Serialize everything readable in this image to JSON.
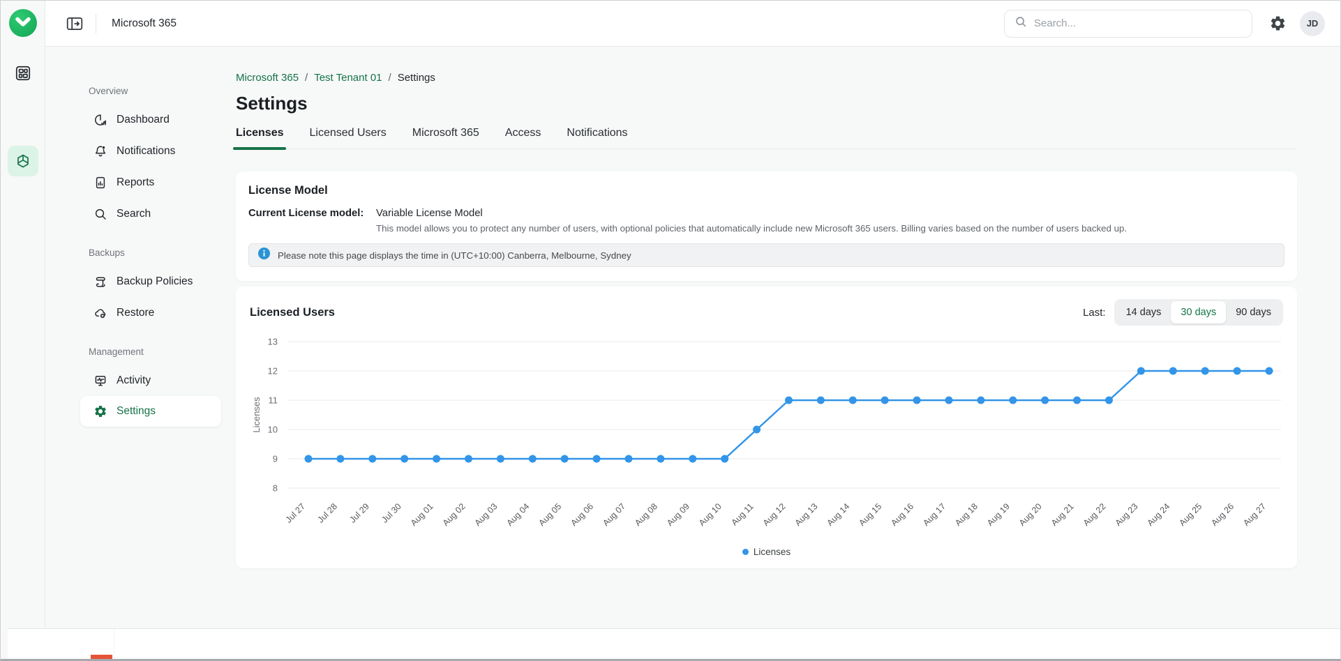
{
  "colors": {
    "brand_green": "#157347",
    "accent_blue": "#3295e8",
    "rail_active_bg": "#dcf3e7",
    "info_blue": "#2a93d5",
    "page_bg": "#f7f8f8"
  },
  "topbar": {
    "app_title": "Microsoft 365",
    "search_placeholder": "Search...",
    "avatar_initials": "JD"
  },
  "sidebar": {
    "sections": [
      {
        "label": "Overview",
        "items": [
          {
            "label": "Dashboard"
          },
          {
            "label": "Notifications"
          },
          {
            "label": "Reports"
          },
          {
            "label": "Search"
          }
        ]
      },
      {
        "label": "Backups",
        "items": [
          {
            "label": "Backup Policies"
          },
          {
            "label": "Restore"
          }
        ]
      },
      {
        "label": "Management",
        "items": [
          {
            "label": "Activity"
          },
          {
            "label": "Settings"
          }
        ]
      }
    ],
    "active_item": "Settings"
  },
  "breadcrumb": {
    "crumbs": [
      "Microsoft 365",
      "Test Tenant 01",
      "Settings"
    ],
    "separator": "/"
  },
  "page": {
    "title": "Settings"
  },
  "tabs": [
    {
      "label": "Licenses",
      "active": true
    },
    {
      "label": "Licensed Users",
      "active": false
    },
    {
      "label": "Microsoft 365",
      "active": false
    },
    {
      "label": "Access",
      "active": false
    },
    {
      "label": "Notifications",
      "active": false
    }
  ],
  "license_model": {
    "title": "License Model",
    "field_label": "Current License model:",
    "value": "Variable License Model",
    "description": "This model allows you to protect any number of users, with optional policies that automatically include new Microsoft 365 users. Billing varies based on the number of users backed up.",
    "notice": "Please note this page displays the time in (UTC+10:00) Canberra, Melbourne, Sydney"
  },
  "licensed_users": {
    "title": "Licensed Users",
    "range_label": "Last:",
    "ranges": [
      "14 days",
      "30 days",
      "90 days"
    ],
    "selected_range": "30 days"
  },
  "chart_data": {
    "type": "line",
    "title": "Licensed Users",
    "xlabel": "",
    "ylabel": "Licenses",
    "legend": [
      "Licenses"
    ],
    "legend_position": "bottom",
    "grid": true,
    "ylim": [
      8,
      13
    ],
    "yticks": [
      8,
      9,
      10,
      11,
      12,
      13
    ],
    "line_color": "#3295e8",
    "categories": [
      "Jul 27",
      "Jul 28",
      "Jul 29",
      "Jul 30",
      "Aug 01",
      "Aug 02",
      "Aug 03",
      "Aug 04",
      "Aug 05",
      "Aug 06",
      "Aug 07",
      "Aug 08",
      "Aug 09",
      "Aug 10",
      "Aug 11",
      "Aug 12",
      "Aug 13",
      "Aug 14",
      "Aug 15",
      "Aug 16",
      "Aug 17",
      "Aug 18",
      "Aug 19",
      "Aug 20",
      "Aug 21",
      "Aug 22",
      "Aug 23",
      "Aug 24",
      "Aug 25",
      "Aug 26",
      "Aug 27"
    ],
    "values": [
      9,
      9,
      9,
      9,
      9,
      9,
      9,
      9,
      9,
      9,
      9,
      9,
      9,
      9,
      10,
      11,
      11,
      11,
      11,
      11,
      11,
      11,
      11,
      11,
      11,
      11,
      12,
      12,
      12,
      12,
      12
    ]
  }
}
